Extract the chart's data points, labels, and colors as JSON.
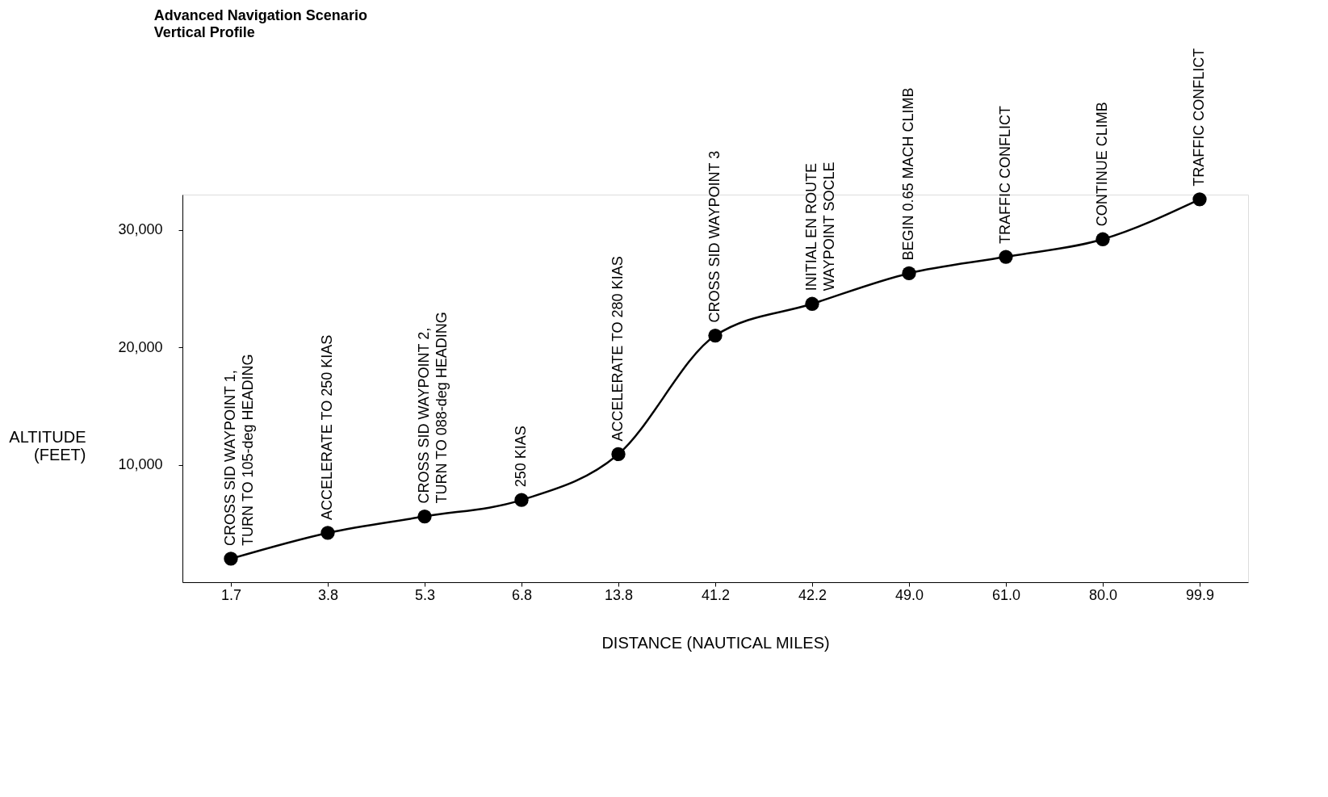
{
  "chart_data": {
    "type": "line",
    "title": "Advanced Navigation Scenario",
    "subtitle": "Vertical Profile",
    "xlabel": "DISTANCE (NAUTICAL MILES)",
    "ylabel": "ALTITUDE\n(FEET)",
    "categories": [
      "1.7",
      "3.8",
      "5.3",
      "6.8",
      "13.8",
      "41.2",
      "42.2",
      "49.0",
      "61.0",
      "80.0",
      "99.9"
    ],
    "series": [
      {
        "color": "#000000",
        "values": [
          2000,
          4200,
          5600,
          7000,
          10900,
          21000,
          23700,
          26300,
          27700,
          29200,
          32600
        ]
      }
    ],
    "ylim": [
      0,
      33000
    ],
    "yticks": [
      {
        "value": 10000,
        "label": "10,000"
      },
      {
        "value": 20000,
        "label": "20,000"
      },
      {
        "value": 30000,
        "label": "30,000"
      }
    ],
    "grid": false,
    "marker": "circle",
    "line_style": "solid",
    "annotations": [
      {
        "text": "CROSS SID WAYPOINT 1,\nTURN TO 105-deg HEADING",
        "x": "1.7",
        "y": 2000
      },
      {
        "text": "ACCELERATE TO 250 KIAS",
        "x": "3.8",
        "y": 4200
      },
      {
        "text": "CROSS SID WAYPOINT 2,\nTURN TO 088-deg HEADING",
        "x": "5.3",
        "y": 5600
      },
      {
        "text": "250 KIAS",
        "x": "6.8",
        "y": 7000
      },
      {
        "text": "ACCELERATE TO 280 KIAS",
        "x": "13.8",
        "y": 10900
      },
      {
        "text": "CROSS SID WAYPOINT 3",
        "x": "41.2",
        "y": 21000
      },
      {
        "text": "INITIAL EN ROUTE\nWAYPOINT SOCLE",
        "x": "42.2",
        "y": 23700
      },
      {
        "text": "BEGIN 0.65 MACH CLIMB",
        "x": "49.0",
        "y": 26300
      },
      {
        "text": "TRAFFIC CONFLICT",
        "x": "61.0",
        "y": 27700
      },
      {
        "text": "CONTINUE CLIMB",
        "x": "80.0",
        "y": 29200
      },
      {
        "text": "TRAFFIC CONFLICT",
        "x": "99.9",
        "y": 32600
      }
    ]
  }
}
